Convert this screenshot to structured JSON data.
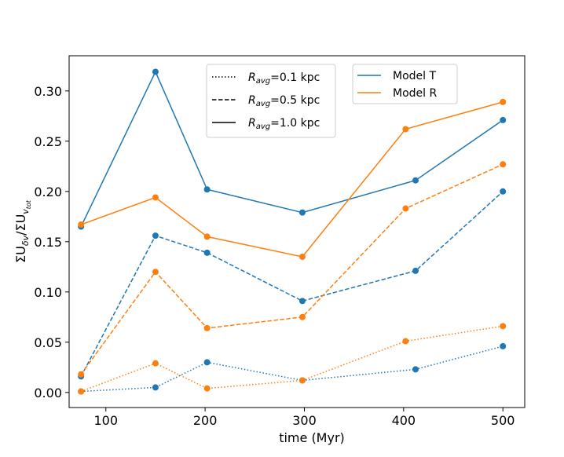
{
  "chart_data": {
    "type": "line",
    "title": "",
    "xlabel": "time (Myr)",
    "ylabel": "ΣU_δv/ΣU_v_tot",
    "xlim": [
      63,
      522
    ],
    "ylim": [
      -0.015,
      0.335
    ],
    "xticks": [
      100,
      200,
      300,
      400,
      500
    ],
    "yticks": [
      0.0,
      0.05,
      0.1,
      0.15,
      0.2,
      0.25,
      0.3
    ],
    "xtick_labels": [
      "100",
      "200",
      "300",
      "400",
      "500"
    ],
    "ytick_labels": [
      "0.00",
      "0.05",
      "0.10",
      "0.15",
      "0.20",
      "0.25",
      "0.30"
    ],
    "grid": false,
    "colors": {
      "Model T": "#1f77b4",
      "Model R": "#ff7f0e"
    },
    "series": [
      {
        "name": "Model T, Ravg=1.0 kpc",
        "model": "Model T",
        "linestyle": "solid",
        "x": [
          75,
          150,
          202,
          298,
          412,
          500
        ],
        "values": [
          0.165,
          0.319,
          0.202,
          0.179,
          0.211,
          0.271
        ]
      },
      {
        "name": "Model T, Ravg=0.5 kpc",
        "model": "Model T",
        "linestyle": "dashed",
        "x": [
          75,
          150,
          202,
          298,
          412,
          500
        ],
        "values": [
          0.016,
          0.156,
          0.139,
          0.091,
          0.121,
          0.2
        ]
      },
      {
        "name": "Model T, Ravg=0.1 kpc",
        "model": "Model T",
        "linestyle": "dotted",
        "x": [
          75,
          150,
          202,
          298,
          412,
          500
        ],
        "values": [
          0.001,
          0.005,
          0.03,
          0.012,
          0.023,
          0.046
        ]
      },
      {
        "name": "Model R, Ravg=1.0 kpc",
        "model": "Model R",
        "linestyle": "solid",
        "x": [
          75,
          150,
          202,
          298,
          402,
          500
        ],
        "values": [
          0.167,
          0.194,
          0.155,
          0.135,
          0.262,
          0.289
        ]
      },
      {
        "name": "Model R, Ravg=0.5 kpc",
        "model": "Model R",
        "linestyle": "dashed",
        "x": [
          75,
          150,
          202,
          298,
          402,
          500
        ],
        "values": [
          0.018,
          0.12,
          0.064,
          0.075,
          0.183,
          0.227
        ]
      },
      {
        "name": "Model R, Ravg=0.1 kpc",
        "model": "Model R",
        "linestyle": "dotted",
        "x": [
          75,
          150,
          202,
          298,
          402,
          500
        ],
        "values": [
          0.001,
          0.029,
          0.004,
          0.012,
          0.051,
          0.066
        ]
      }
    ],
    "legends": [
      {
        "name": "linestyle",
        "location": "upper-center",
        "entries": [
          {
            "linestyle": "dotted",
            "label_sub": "avg",
            "label_rest": "=0.1 kpc"
          },
          {
            "linestyle": "dashed",
            "label_sub": "avg",
            "label_rest": "=0.5 kpc"
          },
          {
            "linestyle": "solid",
            "label_sub": "avg",
            "label_rest": "=1.0 kpc"
          }
        ]
      },
      {
        "name": "model",
        "location": "upper-center-right",
        "entries": [
          {
            "label": "Model T",
            "color": "#1f77b4"
          },
          {
            "label": "Model R",
            "color": "#ff7f0e"
          }
        ]
      }
    ]
  }
}
